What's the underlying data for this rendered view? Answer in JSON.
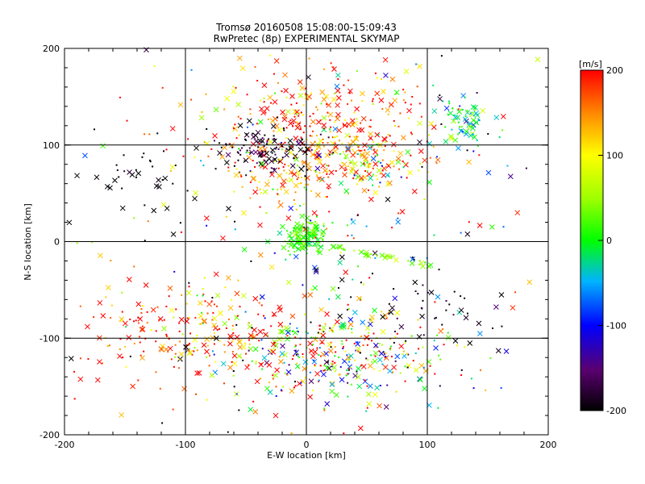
{
  "chart_data": {
    "type": "scatter",
    "title": "Tromsø 20160508 15:08:00-15:09:43",
    "subtitle": "RwPretec (8p) EXPERIMENTAL SKYMAP",
    "xlabel": "E-W location [km]",
    "ylabel": "N-S location [km]",
    "xlim": [
      -200,
      200
    ],
    "ylim": [
      -200,
      200
    ],
    "xticks": [
      "-200",
      "-100",
      "0",
      "100",
      "200"
    ],
    "yticks": [
      "-200",
      "-100",
      "0",
      "100",
      "200"
    ],
    "grid": true,
    "colorbar": {
      "label": "[m/s]",
      "range": [
        -200,
        200
      ],
      "ticks": [
        "200",
        "100",
        "0",
        "-100",
        "-200"
      ],
      "colormap": "black-purple-blue-cyan-green-yellow-red"
    },
    "markers": [
      "x",
      "dot"
    ],
    "clusters": [
      {
        "cx": 15,
        "cy": 110,
        "sx": 45,
        "sy": 35,
        "n": 420,
        "vmean": 170,
        "vsd": 70
      },
      {
        "cx": -35,
        "cy": 95,
        "sx": 20,
        "sy": 12,
        "n": 110,
        "vmean": -190,
        "vsd": 40
      },
      {
        "cx": 0,
        "cy": 5,
        "sx": 8,
        "sy": 10,
        "n": 150,
        "vmean": 20,
        "vsd": 25
      },
      {
        "cx": 25,
        "cy": -115,
        "sx": 50,
        "sy": 25,
        "n": 360,
        "vmean": 60,
        "vsd": 150
      },
      {
        "cx": -80,
        "cy": -95,
        "sx": 35,
        "sy": 25,
        "n": 170,
        "vmean": 170,
        "vsd": 70
      },
      {
        "cx": 130,
        "cy": 125,
        "sx": 12,
        "sy": 12,
        "n": 70,
        "vmean": -10,
        "vsd": 40
      },
      {
        "cx": -140,
        "cy": 75,
        "sx": 20,
        "sy": 20,
        "n": 35,
        "vmean": -200,
        "vsd": 10
      },
      {
        "cx": -20,
        "cy": 60,
        "sx": 20,
        "sy": 12,
        "n": 40,
        "vmean": 120,
        "vsd": 40
      },
      {
        "cx": 55,
        "cy": 80,
        "sx": 25,
        "sy": 15,
        "n": 80,
        "vmean": 60,
        "vsd": 80
      },
      {
        "cx": 100,
        "cy": -70,
        "sx": 30,
        "sy": 30,
        "n": 50,
        "vmean": -190,
        "vsd": 20
      },
      {
        "cx": -150,
        "cy": -100,
        "sx": 25,
        "sy": 40,
        "n": 50,
        "vmean": 180,
        "vsd": 40
      },
      {
        "cx": 0,
        "cy": 0,
        "sx": 110,
        "sy": 110,
        "n": 280,
        "vmean": 0,
        "vsd": 200
      }
    ],
    "line_feature": {
      "x0": 20,
      "y0": -5,
      "x1": 105,
      "y1": -25,
      "n": 40,
      "vmean": 40,
      "vsd": 15
    }
  }
}
